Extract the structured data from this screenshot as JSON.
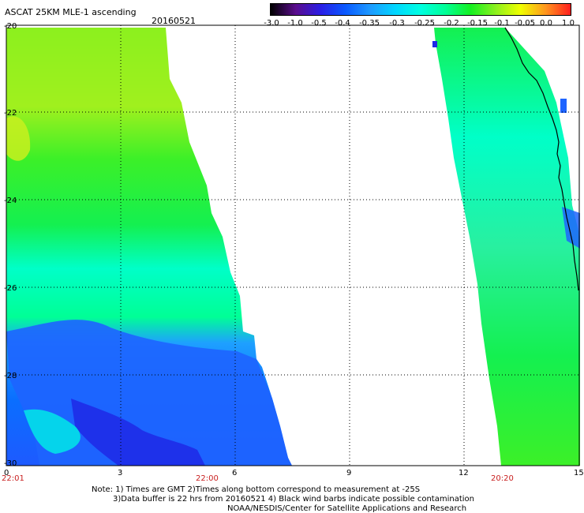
{
  "header": {
    "title": "ASCAT 25KM MLE-1 ascending",
    "date": "20160521"
  },
  "colorbar": {
    "labels": [
      "-3.0",
      "-1.0",
      "-0.5",
      "-0.4",
      "-0.35",
      "-0.3",
      "-0.25",
      "-0.2",
      "-0.15",
      "-0.1",
      "-0.05",
      "0.0",
      "1.0"
    ],
    "colors": [
      "#000000",
      "#5a0c8c",
      "#2a1ee6",
      "#0a5aff",
      "#1e9bff",
      "#00d7ff",
      "#00ffe1",
      "#00ff96",
      "#14f020",
      "#8cf01e",
      "#f0ff00",
      "#ff961e",
      "#ff1e1e"
    ]
  },
  "axes": {
    "y_labels": [
      "-20",
      "-22",
      "-24",
      "-26",
      "-28",
      "-30"
    ],
    "x_labels": [
      "0",
      "3",
      "6",
      "9",
      "12",
      "15"
    ],
    "time_labels": [
      "22:01",
      "22:00",
      "20:20"
    ],
    "time_label_color": "#c81e1e"
  },
  "notes": {
    "line1": "Note: 1) Times are GMT 2)Times along bottom correspond to measurement at -25S",
    "line2": "3)Data buffer is 22 hrs from 20160521 4) Black wind barbs indicate possible contamination",
    "line3": "NOAA/NESDIS/Center for Satellite Applications and Research"
  }
}
